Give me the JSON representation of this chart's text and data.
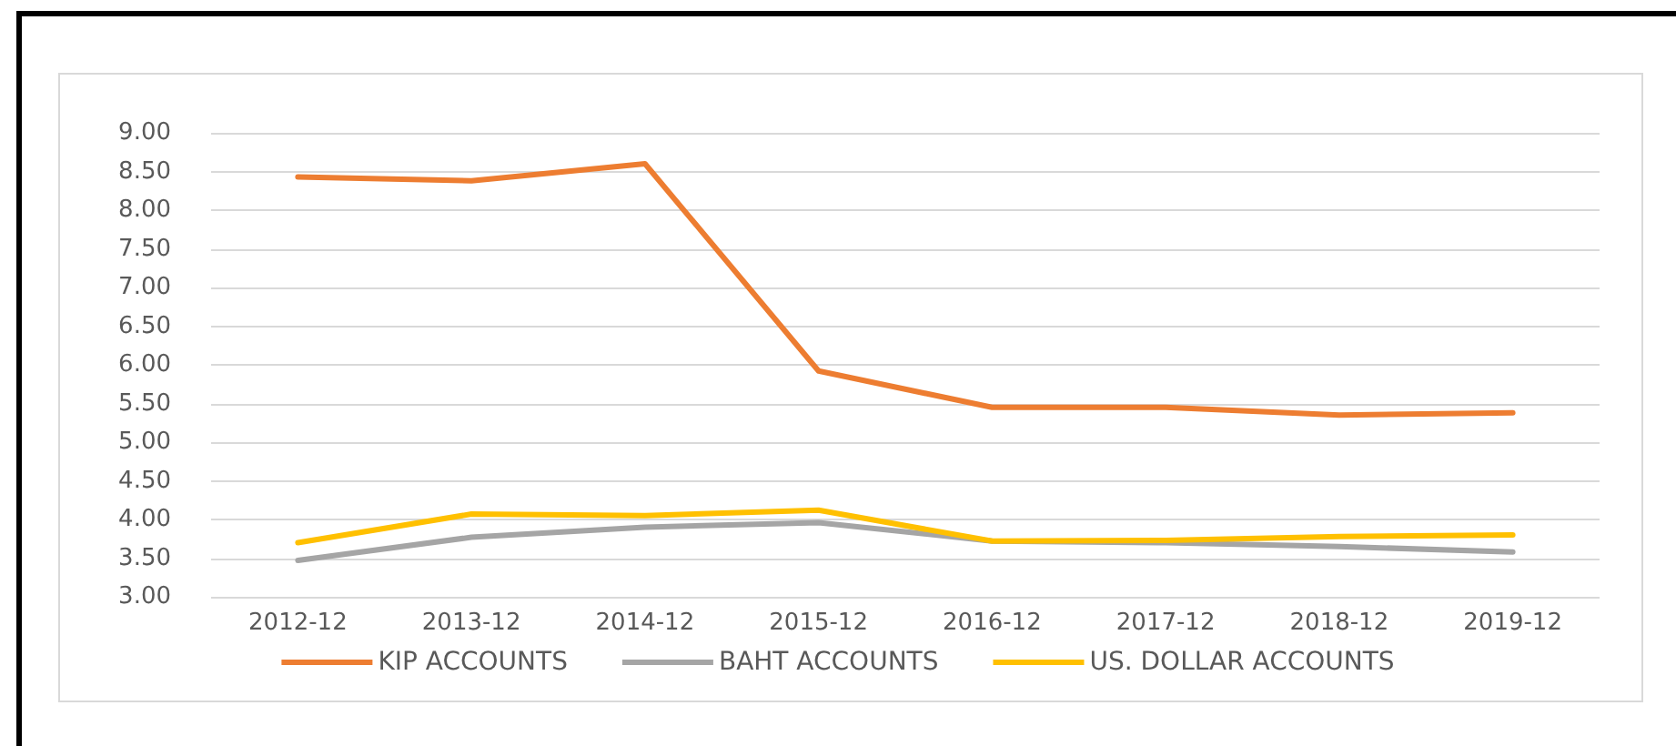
{
  "chart_data": {
    "type": "line",
    "categories": [
      "2012-12",
      "2013-12",
      "2014-12",
      "2015-12",
      "2016-12",
      "2017-12",
      "2018-12",
      "2019-12"
    ],
    "series": [
      {
        "name": "KIP ACCOUNTS",
        "color": "#ed7d31",
        "values": [
          8.43,
          8.38,
          8.6,
          5.92,
          5.45,
          5.45,
          5.35,
          5.38
        ]
      },
      {
        "name": "BAHT ACCOUNTS",
        "color": "#a5a5a5",
        "values": [
          3.47,
          3.77,
          3.9,
          3.96,
          3.72,
          3.7,
          3.65,
          3.58
        ]
      },
      {
        "name": "US. DOLLAR ACCOUNTS",
        "color": "#ffc000",
        "values": [
          3.7,
          4.07,
          4.05,
          4.12,
          3.72,
          3.73,
          3.78,
          3.8
        ]
      }
    ],
    "ylim": [
      3,
      9
    ],
    "yticks": [
      {
        "value": 3,
        "label": "3.00"
      },
      {
        "value": 3.5,
        "label": "3.50"
      },
      {
        "value": 4,
        "label": "4.00"
      },
      {
        "value": 4.5,
        "label": "4.50"
      },
      {
        "value": 5,
        "label": "5.00"
      },
      {
        "value": 5.5,
        "label": "5.50"
      },
      {
        "value": 6,
        "label": "6.00"
      },
      {
        "value": 6.5,
        "label": "6.50"
      },
      {
        "value": 7,
        "label": "7.00"
      },
      {
        "value": 7.5,
        "label": "7.50"
      },
      {
        "value": 8,
        "label": "8.00"
      },
      {
        "value": 8.5,
        "label": "8.50"
      },
      {
        "value": 9,
        "label": "9.00"
      }
    ],
    "grid": "y",
    "legend": "bottom",
    "marker": "none",
    "line_style": "solid"
  }
}
